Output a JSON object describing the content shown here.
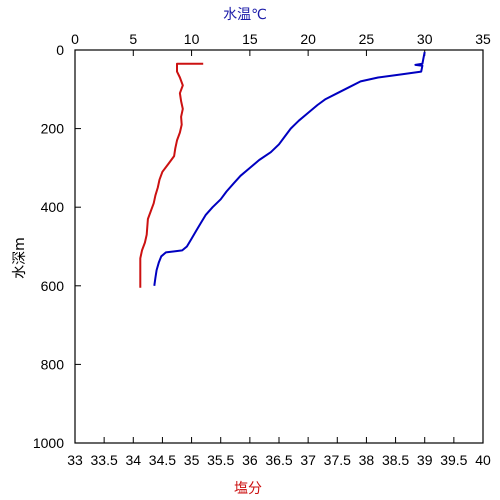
{
  "chart_data": {
    "type": "line",
    "title": "",
    "top_axis": {
      "label": "水温℃",
      "label_color": "#1a1aa8",
      "range": [
        0,
        35
      ],
      "ticks": [
        0,
        5,
        10,
        15,
        20,
        25,
        30,
        35
      ],
      "tick_labels": [
        "0",
        "5",
        "10",
        "15",
        "20",
        "25",
        "30",
        "35"
      ]
    },
    "bottom_axis": {
      "label": "塩分",
      "label_color": "#cc1111",
      "range": [
        33,
        40
      ],
      "ticks": [
        33,
        33.5,
        34,
        34.5,
        35,
        35.5,
        36,
        36.5,
        37,
        37.5,
        38,
        38.5,
        39,
        39.5,
        40
      ],
      "tick_labels": [
        "33",
        "33.5",
        "34",
        "34.5",
        "35",
        "35.5",
        "36",
        "36.5",
        "37",
        "37.5",
        "38",
        "38.5",
        "39",
        "39.5",
        "40"
      ]
    },
    "y_axis": {
      "label": "水深m",
      "range": [
        0,
        1000
      ],
      "inverted": true,
      "ticks": [
        0,
        200,
        400,
        600,
        800,
        1000
      ],
      "tick_labels": [
        "0",
        "200",
        "400",
        "600",
        "800",
        "1000"
      ]
    },
    "grid": false,
    "series": [
      {
        "axis": "top",
        "color": "#0000c0",
        "points": [
          {
            "x": 30.0,
            "y": 5
          },
          {
            "x": 29.9,
            "y": 20
          },
          {
            "x": 29.8,
            "y": 35
          },
          {
            "x": 29.2,
            "y": 38
          },
          {
            "x": 29.8,
            "y": 40
          },
          {
            "x": 29.7,
            "y": 55
          },
          {
            "x": 28.0,
            "y": 62
          },
          {
            "x": 26.0,
            "y": 70
          },
          {
            "x": 24.5,
            "y": 80
          },
          {
            "x": 23.5,
            "y": 95
          },
          {
            "x": 22.5,
            "y": 110
          },
          {
            "x": 21.5,
            "y": 125
          },
          {
            "x": 20.8,
            "y": 140
          },
          {
            "x": 20.0,
            "y": 160
          },
          {
            "x": 19.2,
            "y": 180
          },
          {
            "x": 18.5,
            "y": 200
          },
          {
            "x": 18.0,
            "y": 220
          },
          {
            "x": 17.5,
            "y": 240
          },
          {
            "x": 16.8,
            "y": 260
          },
          {
            "x": 15.8,
            "y": 280
          },
          {
            "x": 15.0,
            "y": 300
          },
          {
            "x": 14.2,
            "y": 320
          },
          {
            "x": 13.6,
            "y": 340
          },
          {
            "x": 13.0,
            "y": 360
          },
          {
            "x": 12.5,
            "y": 380
          },
          {
            "x": 11.8,
            "y": 400
          },
          {
            "x": 11.2,
            "y": 420
          },
          {
            "x": 10.8,
            "y": 440
          },
          {
            "x": 10.4,
            "y": 460
          },
          {
            "x": 10.0,
            "y": 480
          },
          {
            "x": 9.6,
            "y": 500
          },
          {
            "x": 9.2,
            "y": 510
          },
          {
            "x": 8.6,
            "y": 512
          },
          {
            "x": 7.8,
            "y": 515
          },
          {
            "x": 7.4,
            "y": 525
          },
          {
            "x": 7.2,
            "y": 540
          },
          {
            "x": 7.0,
            "y": 560
          },
          {
            "x": 6.9,
            "y": 580
          },
          {
            "x": 6.8,
            "y": 600
          }
        ]
      },
      {
        "axis": "bottom",
        "color": "#cc1111",
        "points": [
          {
            "x": 35.2,
            "y": 35
          },
          {
            "x": 34.75,
            "y": 35
          },
          {
            "x": 34.75,
            "y": 55
          },
          {
            "x": 34.8,
            "y": 70
          },
          {
            "x": 34.85,
            "y": 90
          },
          {
            "x": 34.8,
            "y": 110
          },
          {
            "x": 34.82,
            "y": 130
          },
          {
            "x": 34.85,
            "y": 150
          },
          {
            "x": 34.82,
            "y": 170
          },
          {
            "x": 34.83,
            "y": 190
          },
          {
            "x": 34.8,
            "y": 210
          },
          {
            "x": 34.75,
            "y": 230
          },
          {
            "x": 34.72,
            "y": 250
          },
          {
            "x": 34.7,
            "y": 270
          },
          {
            "x": 34.6,
            "y": 290
          },
          {
            "x": 34.5,
            "y": 310
          },
          {
            "x": 34.45,
            "y": 330
          },
          {
            "x": 34.42,
            "y": 350
          },
          {
            "x": 34.38,
            "y": 370
          },
          {
            "x": 34.35,
            "y": 390
          },
          {
            "x": 34.3,
            "y": 410
          },
          {
            "x": 34.25,
            "y": 430
          },
          {
            "x": 34.24,
            "y": 450
          },
          {
            "x": 34.23,
            "y": 470
          },
          {
            "x": 34.2,
            "y": 490
          },
          {
            "x": 34.15,
            "y": 510
          },
          {
            "x": 34.12,
            "y": 530
          },
          {
            "x": 34.12,
            "y": 550
          },
          {
            "x": 34.12,
            "y": 570
          },
          {
            "x": 34.12,
            "y": 590
          },
          {
            "x": 34.12,
            "y": 605
          }
        ]
      }
    ]
  }
}
